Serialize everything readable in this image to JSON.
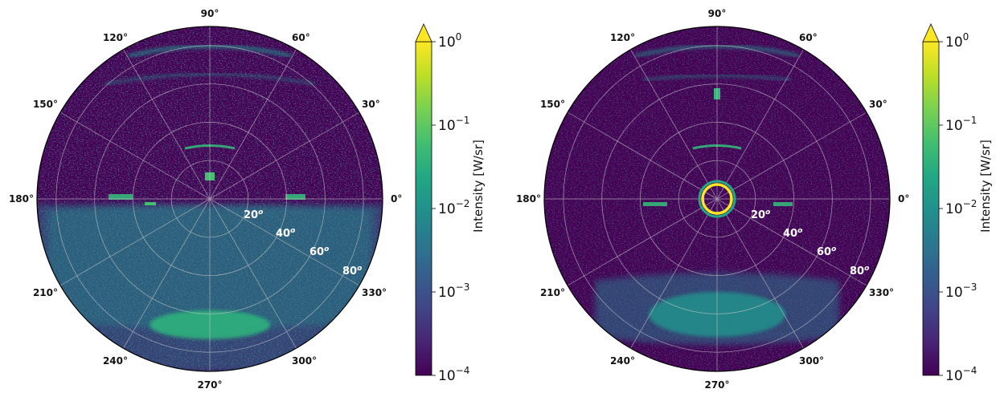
{
  "chart_data": [
    {
      "type": "heatmap",
      "projection": "polar",
      "panel": "left",
      "angular_ticks": [
        "0°",
        "30°",
        "60°",
        "90°",
        "120°",
        "150°",
        "180°",
        "210°",
        "240°",
        "270°",
        "300°",
        "330°"
      ],
      "radial_ticks": [
        "20",
        "40",
        "60",
        "80"
      ],
      "radial_unit": "o",
      "rlim": [
        0,
        90
      ],
      "grid": true,
      "features": [
        "bright horizontal band at 270° (r≈70–80°)",
        "diffuse teal lower hemisphere",
        "small bright patches near 180° and 0° on horizon"
      ],
      "colorbar": {
        "label": "Intensity [W/sr]",
        "scale": "log",
        "range": [
          0.0001,
          1
        ],
        "ticks": [
          {
            "base": "10",
            "exp": "0"
          },
          {
            "base": "10",
            "exp": "−1"
          },
          {
            "base": "10",
            "exp": "−2"
          },
          {
            "base": "10",
            "exp": "−3"
          },
          {
            "base": "10",
            "exp": "−4"
          }
        ],
        "extend": "max",
        "colormap": "viridis"
      }
    },
    {
      "type": "heatmap",
      "projection": "polar",
      "panel": "right",
      "angular_ticks": [
        "0°",
        "30°",
        "60°",
        "90°",
        "120°",
        "150°",
        "180°",
        "210°",
        "240°",
        "270°",
        "300°",
        "330°"
      ],
      "radial_ticks": [
        "20",
        "40",
        "60",
        "80"
      ],
      "radial_unit": "o",
      "rlim": [
        0,
        90
      ],
      "grid": true,
      "features": [
        "bright yellow ring at zenith (r≈10°)",
        "teal band near 270° (r≈60–75°)"
      ],
      "colorbar": {
        "label": "Intensity [W/sr]",
        "scale": "log",
        "range": [
          0.0001,
          1
        ],
        "ticks": [
          {
            "base": "10",
            "exp": "0"
          },
          {
            "base": "10",
            "exp": "−1"
          },
          {
            "base": "10",
            "exp": "−2"
          },
          {
            "base": "10",
            "exp": "−3"
          },
          {
            "base": "10",
            "exp": "−4"
          }
        ],
        "extend": "max",
        "colormap": "viridis"
      }
    }
  ],
  "colors": {
    "background_dark": "#440154",
    "mid": "#21918c",
    "bright": "#fde725",
    "grid": "#c8c8c8"
  }
}
